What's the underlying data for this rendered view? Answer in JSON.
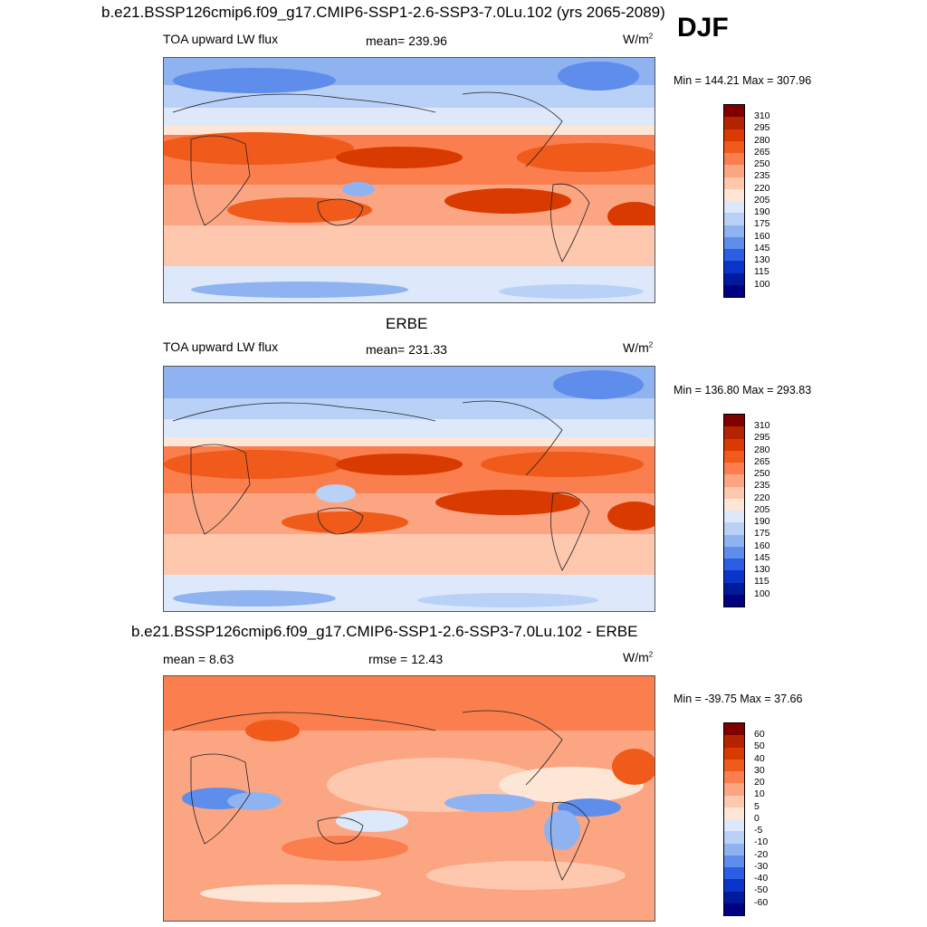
{
  "header": {
    "run_title": "b.e21.BSSP126cmip6.f09_g17.CMIP6-SSP1-2.6-SSP3-7.0Lu.102 (yrs 2065-2089)",
    "season": "DJF"
  },
  "panels": [
    {
      "title": "",
      "variable": "TOA upward LW flux",
      "mean_text": "mean= 239.96",
      "units": "W/m",
      "units_sup": "2",
      "minmax_text": "Min = 144.21 Max = 307.96",
      "colorbar_labels": [
        "310",
        "295",
        "280",
        "265",
        "250",
        "235",
        "220",
        "205",
        "190",
        "175",
        "160",
        "145",
        "130",
        "115",
        "100"
      ]
    },
    {
      "title": "ERBE",
      "variable": "TOA upward LW flux",
      "mean_text": "mean= 231.33",
      "units": "W/m",
      "units_sup": "2",
      "minmax_text": "Min = 136.80 Max = 293.83",
      "colorbar_labels": [
        "310",
        "295",
        "280",
        "265",
        "250",
        "235",
        "220",
        "205",
        "190",
        "175",
        "160",
        "145",
        "130",
        "115",
        "100"
      ]
    },
    {
      "title": "b.e21.BSSP126cmip6.f09_g17.CMIP6-SSP1-2.6-SSP3-7.0Lu.102 - ERBE",
      "mean_text": "mean =   8.63",
      "rmse_text": "rmse =  12.43",
      "units": "W/m",
      "units_sup": "2",
      "minmax_text": "Min = -39.75 Max =  37.66",
      "colorbar_labels": [
        "60",
        "50",
        "40",
        "30",
        "20",
        "10",
        "5",
        "0",
        "-5",
        "-10",
        "-20",
        "-30",
        "-40",
        "-50",
        "-60"
      ]
    }
  ],
  "colors": {
    "lw_scale": [
      "#800000",
      "#b32400",
      "#d93a00",
      "#f05a1a",
      "#fa7e4e",
      "#fca583",
      "#fdc8ae",
      "#fde6d6",
      "#dde9fb",
      "#b9d1f7",
      "#8fb3f1",
      "#5f8deb",
      "#2c5ee3",
      "#0a34c9",
      "#001a9c",
      "#000080"
    ],
    "diff_scale": [
      "#800000",
      "#b32400",
      "#d93a00",
      "#f05a1a",
      "#fa7e4e",
      "#fca583",
      "#fdc8ae",
      "#fde6d6",
      "#dde9fb",
      "#b9d1f7",
      "#8fb3f1",
      "#5f8deb",
      "#2c5ee3",
      "#0a34c9",
      "#001a9c",
      "#000080"
    ]
  }
}
